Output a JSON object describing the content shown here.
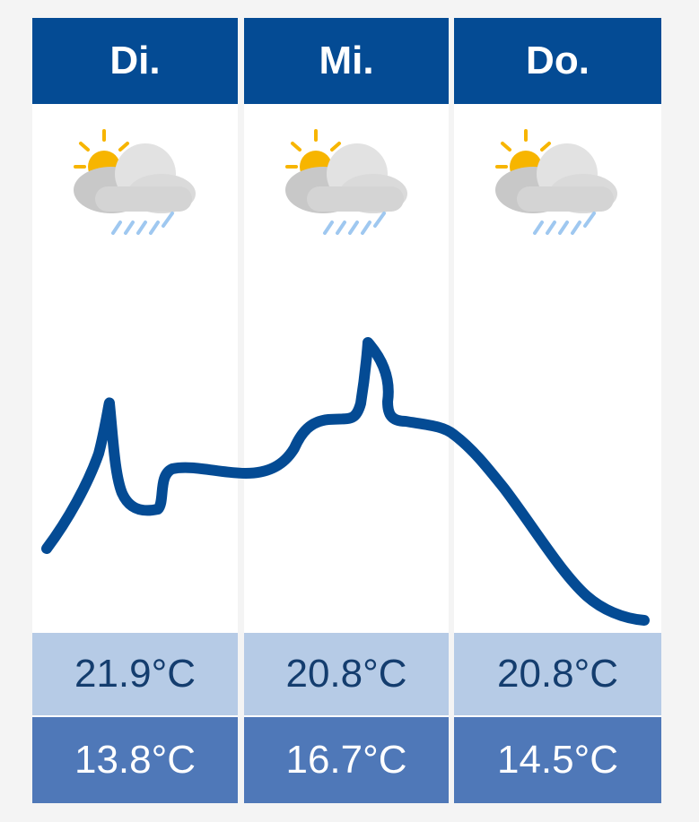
{
  "days": [
    {
      "label": "Di.",
      "icon": "sun-cloud-rain-icon",
      "max": "21.9°C",
      "min": "13.8°C"
    },
    {
      "label": "Mi.",
      "icon": "sun-cloud-rain-icon",
      "max": "20.8°C",
      "min": "16.7°C"
    },
    {
      "label": "Do.",
      "icon": "sun-cloud-rain-icon",
      "max": "20.8°C",
      "min": "14.5°C"
    }
  ],
  "colors": {
    "header": "#044b94",
    "max_row": "#b6cbe6",
    "min_row": "#4f78b8",
    "curve": "#044b94",
    "sun": "#f7b500",
    "cloud": "#d9d9d9",
    "rain": "#9fc8f0"
  }
}
